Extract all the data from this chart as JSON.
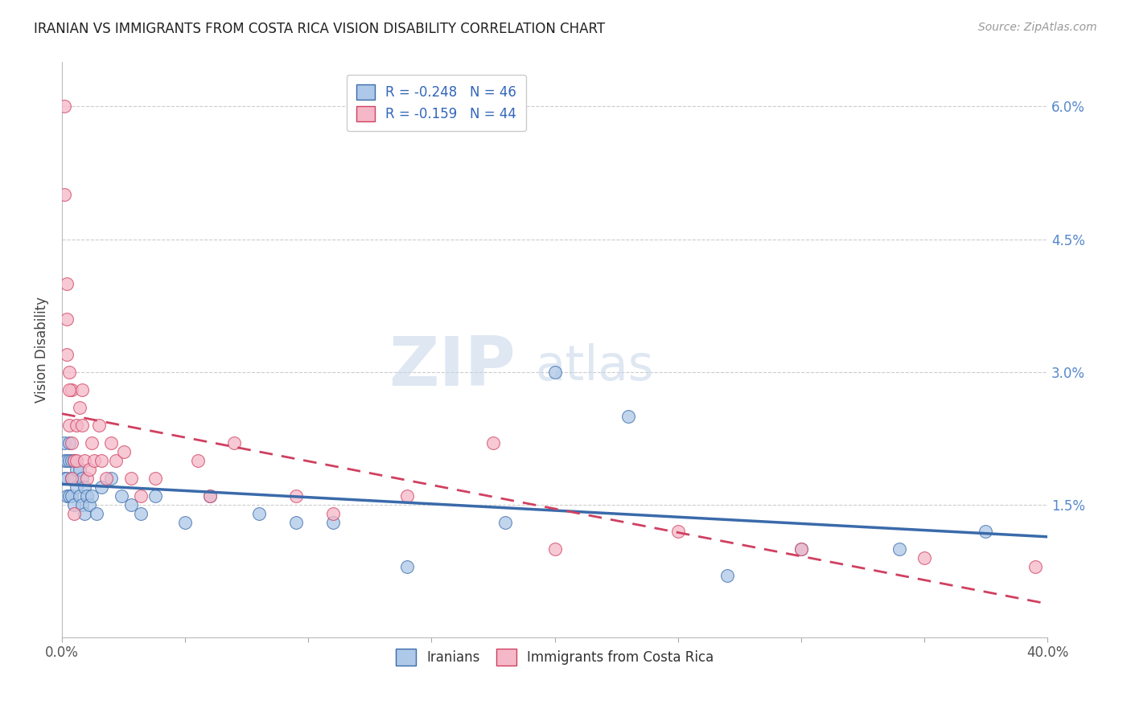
{
  "title": "IRANIAN VS IMMIGRANTS FROM COSTA RICA VISION DISABILITY CORRELATION CHART",
  "source": "Source: ZipAtlas.com",
  "ylabel": "Vision Disability",
  "r1": -0.248,
  "n1": 46,
  "r2": -0.159,
  "n2": 44,
  "color1": "#adc8e8",
  "color2": "#f5b8c8",
  "line_color1": "#3a6aaa",
  "line_color2": "#d04060",
  "watermark_zip": "ZIP",
  "watermark_atlas": "atlas",
  "xlim": [
    0.0,
    0.4
  ],
  "ylim": [
    0.0,
    0.065
  ],
  "yticks": [
    0.0,
    0.015,
    0.03,
    0.045,
    0.06
  ],
  "yticklabels_right": [
    "",
    "1.5%",
    "3.0%",
    "4.5%",
    "6.0%"
  ],
  "legend_label1": "Iranians",
  "legend_label2": "Immigrants from Costa Rica",
  "iranians_x": [
    0.001,
    0.001,
    0.001,
    0.002,
    0.002,
    0.002,
    0.003,
    0.003,
    0.003,
    0.004,
    0.004,
    0.004,
    0.005,
    0.005,
    0.005,
    0.006,
    0.006,
    0.007,
    0.007,
    0.008,
    0.008,
    0.009,
    0.009,
    0.01,
    0.011,
    0.012,
    0.014,
    0.016,
    0.02,
    0.024,
    0.028,
    0.032,
    0.038,
    0.05,
    0.06,
    0.08,
    0.095,
    0.11,
    0.14,
    0.18,
    0.2,
    0.23,
    0.27,
    0.3,
    0.34,
    0.375
  ],
  "iranians_y": [
    0.022,
    0.02,
    0.018,
    0.02,
    0.018,
    0.016,
    0.022,
    0.02,
    0.016,
    0.02,
    0.018,
    0.016,
    0.02,
    0.018,
    0.015,
    0.019,
    0.017,
    0.019,
    0.016,
    0.018,
    0.015,
    0.017,
    0.014,
    0.016,
    0.015,
    0.016,
    0.014,
    0.017,
    0.018,
    0.016,
    0.015,
    0.014,
    0.016,
    0.013,
    0.016,
    0.014,
    0.013,
    0.013,
    0.008,
    0.013,
    0.03,
    0.025,
    0.007,
    0.01,
    0.01,
    0.012
  ],
  "costarica_x": [
    0.001,
    0.001,
    0.002,
    0.002,
    0.003,
    0.003,
    0.004,
    0.004,
    0.005,
    0.006,
    0.006,
    0.007,
    0.008,
    0.008,
    0.009,
    0.01,
    0.011,
    0.012,
    0.013,
    0.015,
    0.016,
    0.018,
    0.02,
    0.022,
    0.025,
    0.028,
    0.032,
    0.038,
    0.055,
    0.06,
    0.07,
    0.095,
    0.11,
    0.14,
    0.175,
    0.2,
    0.25,
    0.3,
    0.35,
    0.395,
    0.002,
    0.003,
    0.004,
    0.005
  ],
  "costarica_y": [
    0.06,
    0.05,
    0.04,
    0.032,
    0.03,
    0.024,
    0.028,
    0.022,
    0.02,
    0.024,
    0.02,
    0.026,
    0.024,
    0.028,
    0.02,
    0.018,
    0.019,
    0.022,
    0.02,
    0.024,
    0.02,
    0.018,
    0.022,
    0.02,
    0.021,
    0.018,
    0.016,
    0.018,
    0.02,
    0.016,
    0.022,
    0.016,
    0.014,
    0.016,
    0.022,
    0.01,
    0.012,
    0.01,
    0.009,
    0.008,
    0.036,
    0.028,
    0.018,
    0.014
  ]
}
